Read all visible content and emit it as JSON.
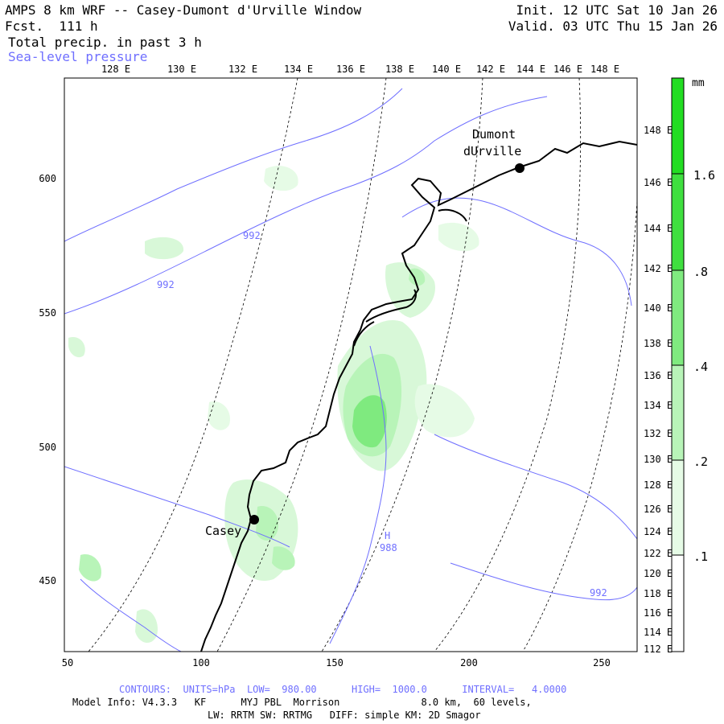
{
  "header": {
    "title": "AMPS 8 km WRF -- Casey-Dumont d'Urville Window",
    "fcst": "Fcst.  111 h",
    "field": "Total precip. in past 3 h",
    "overlay": "Sea-level pressure",
    "init": "Init. 12 UTC Sat 10 Jan 26",
    "valid": "Valid. 03 UTC Thu 15 Jan 26"
  },
  "map": {
    "top_lon_labels": [
      "128 E",
      "130 E",
      "132 E",
      "134 E",
      "136 E",
      "138 E",
      "140 E",
      "142 E",
      "144 E",
      "146 E",
      "148 E"
    ],
    "right_lon_labels": [
      "148 E",
      "146 E",
      "144 E",
      "142 E",
      "140 E",
      "138 E",
      "136 E",
      "134 E",
      "132 E",
      "130 E",
      "128 E",
      "126 E",
      "124 E",
      "122 E",
      "120 E",
      "118 E",
      "116 E",
      "114 E",
      "112 E"
    ],
    "x_ticks": [
      "50",
      "100",
      "150",
      "200",
      "250"
    ],
    "y_ticks": [
      "600",
      "550",
      "500",
      "450"
    ],
    "stations": [
      {
        "name_line1": "Dumont",
        "name_line2": "dUrville"
      },
      {
        "name_line1": "Casey",
        "name_line2": ""
      }
    ],
    "contour_labels": [
      "992",
      "992",
      "992"
    ],
    "high_marker": {
      "letter": "H",
      "value": "988"
    }
  },
  "colorbar": {
    "unit": "mm",
    "levels": [
      ".1",
      ".2",
      ".4",
      ".8",
      "1.6"
    ],
    "colors": [
      "#ffffff",
      "#e6fbe6",
      "#b8f4b8",
      "#7fea7f",
      "#3fdf3f",
      "#22dd22"
    ]
  },
  "footer": {
    "contours": "CONTOURS:  UNITS=hPa  LOW=  980.00      HIGH=  1000.0      INTERVAL=   4.0000",
    "model": "Model Info: V4.3.3   KF      MYJ PBL  Morrison              8.0 km,  60 levels,",
    "physics": "LW: RRTM SW: RRTMG   DIFF: simple KM: 2D Smagor"
  },
  "colors": {
    "contour": "#6f6fff",
    "coast": "#000000",
    "grid": "#000000"
  }
}
